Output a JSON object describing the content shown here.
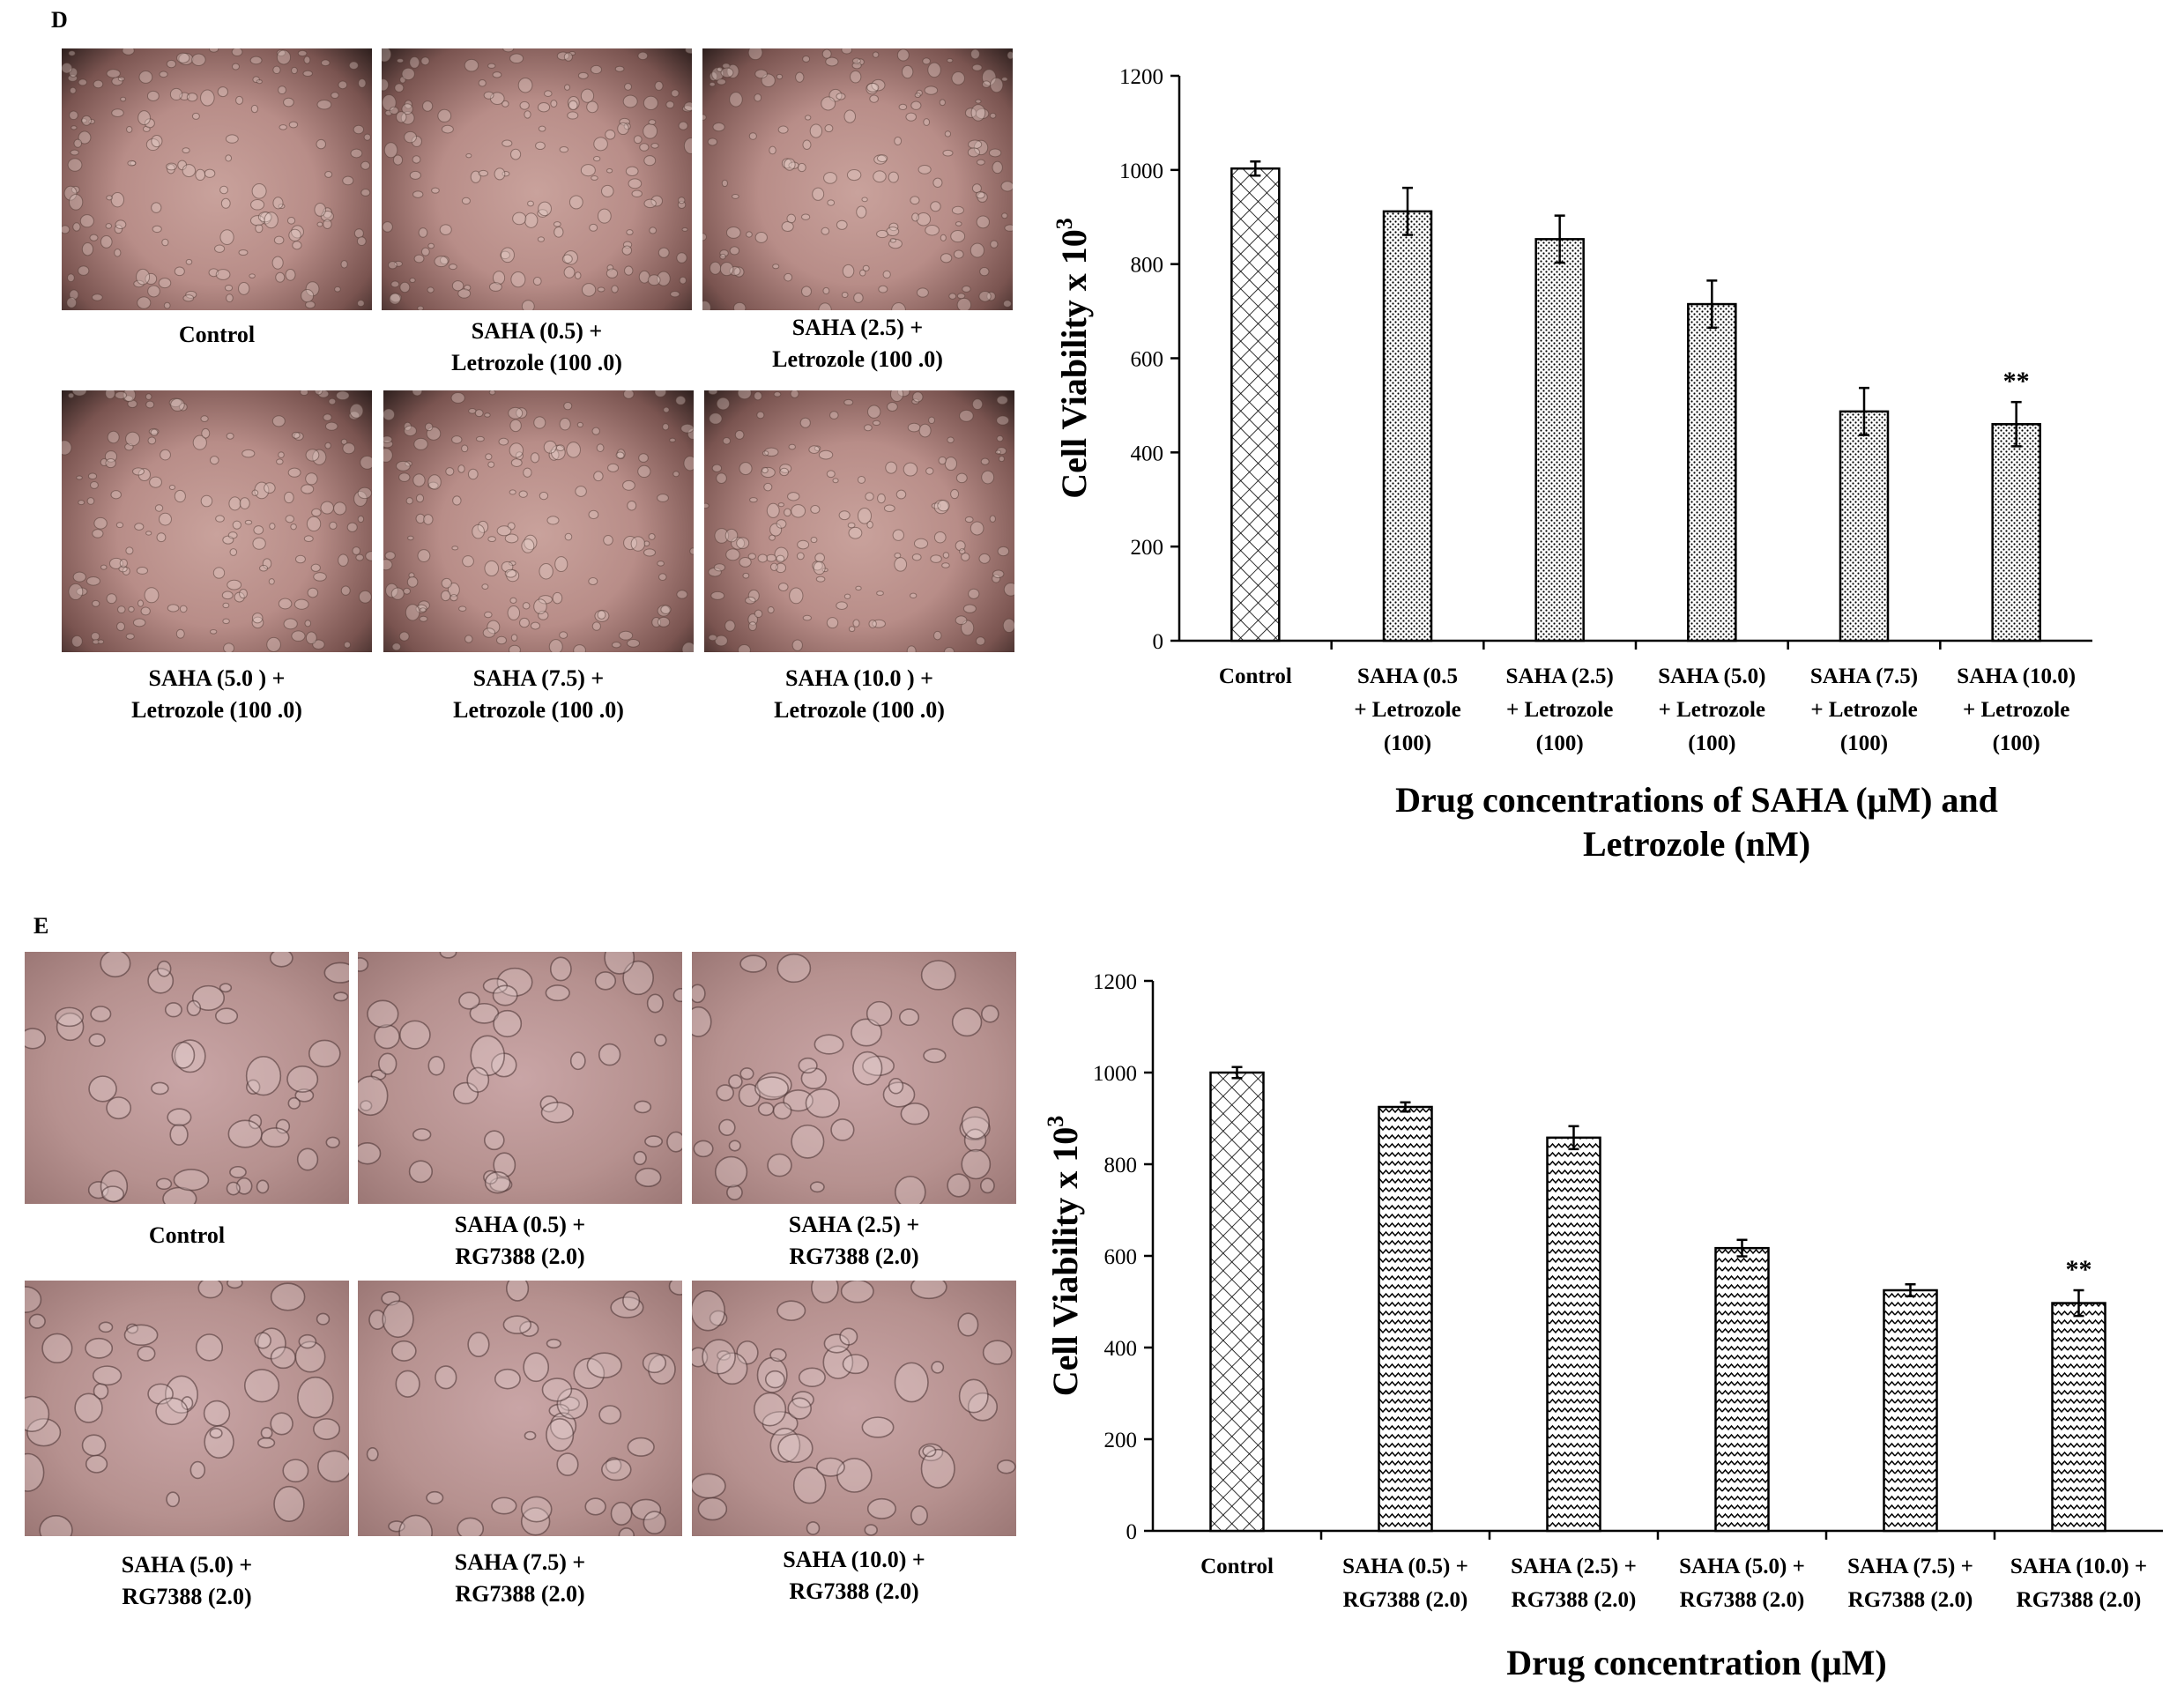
{
  "panels": [
    {
      "id": "D",
      "label": "D",
      "images": [
        {
          "caption": "Control"
        },
        {
          "caption": "SAHA  (0.5) +\nLetrozole (100 .0)"
        },
        {
          "caption": "SAHA  (2.5) +\nLetrozole (100 .0)"
        },
        {
          "caption": "SAHA  (5.0 ) +\nLetrozole (100 .0)"
        },
        {
          "caption": "SAHA  (7.5) +\nLetrozole (100 .0)"
        },
        {
          "caption": "SAHA  (10.0 ) +\nLetrozole (100 .0)"
        }
      ],
      "x_title": "Drug concentrations of SAHA (μM) and\nLetrozole (nM)",
      "y_title_main": "Cell Viability  x 10",
      "y_title_sup": "3"
    },
    {
      "id": "E",
      "label": "E",
      "images": [
        {
          "caption": "Control"
        },
        {
          "caption": "SAHA  (0.5)  +\nRG7388 (2.0)"
        },
        {
          "caption": "SAHA  (2.5)  +\nRG7388 (2.0)"
        },
        {
          "caption": "SAHA (5.0) +\nRG7388 (2.0)"
        },
        {
          "caption": "SAHA (7.5) +\nRG7388 (2.0)"
        },
        {
          "caption": "SAHA (10.0) +\nRG7388 (2.0)"
        }
      ],
      "x_title": "Drug concentration (μM)",
      "y_title_main": "Cell Viability  x 10",
      "y_title_sup": "3"
    }
  ],
  "chart_data": [
    {
      "type": "bar",
      "categories": [
        [
          "Control"
        ],
        [
          "SAHA (0.5",
          "+  Letrozole",
          "(100)"
        ],
        [
          "SAHA (2.5)",
          "+  Letrozole",
          "(100)"
        ],
        [
          "SAHA (5.0)",
          "+  Letrozole",
          "(100)"
        ],
        [
          "SAHA (7.5)",
          "+  Letrozole",
          "(100)"
        ],
        [
          "SAHA (10.0)",
          "+ Letrozole",
          "(100)"
        ]
      ],
      "values": [
        1003,
        912,
        853,
        715,
        487,
        460
      ],
      "errors": [
        15,
        50,
        50,
        50,
        50,
        47
      ],
      "annotations": [
        "",
        "",
        "",
        "",
        "",
        "**"
      ],
      "ylim": [
        0,
        1200
      ],
      "yticks": [
        0,
        200,
        400,
        600,
        800,
        1000,
        1200
      ],
      "bar_patterns": [
        "crosshatch",
        "dots",
        "dots",
        "dots",
        "dots",
        "dots"
      ],
      "grid": false,
      "legend": "none"
    },
    {
      "type": "bar",
      "categories": [
        [
          "Control"
        ],
        [
          "SAHA (0.5) +",
          "RG7388 (2.0)"
        ],
        [
          "SAHA (2.5) +",
          "RG7388 (2.0)"
        ],
        [
          "SAHA (5.0) +",
          "RG7388 (2.0)"
        ],
        [
          "SAHA (7.5) +",
          "RG7388 (2.0)"
        ],
        [
          "SAHA (10.0) +",
          "RG7388 (2.0)"
        ]
      ],
      "values": [
        1000,
        925,
        858,
        617,
        525,
        497
      ],
      "errors": [
        12,
        10,
        25,
        18,
        13,
        28
      ],
      "annotations": [
        "",
        "",
        "",
        "",
        "",
        "**"
      ],
      "ylim": [
        0,
        1200
      ],
      "yticks": [
        0,
        200,
        400,
        600,
        800,
        1000,
        1200
      ],
      "bar_patterns": [
        "crosshatch",
        "zigzag",
        "zigzag",
        "zigzag",
        "zigzag",
        "zigzag"
      ],
      "grid": false,
      "legend": "none"
    }
  ]
}
